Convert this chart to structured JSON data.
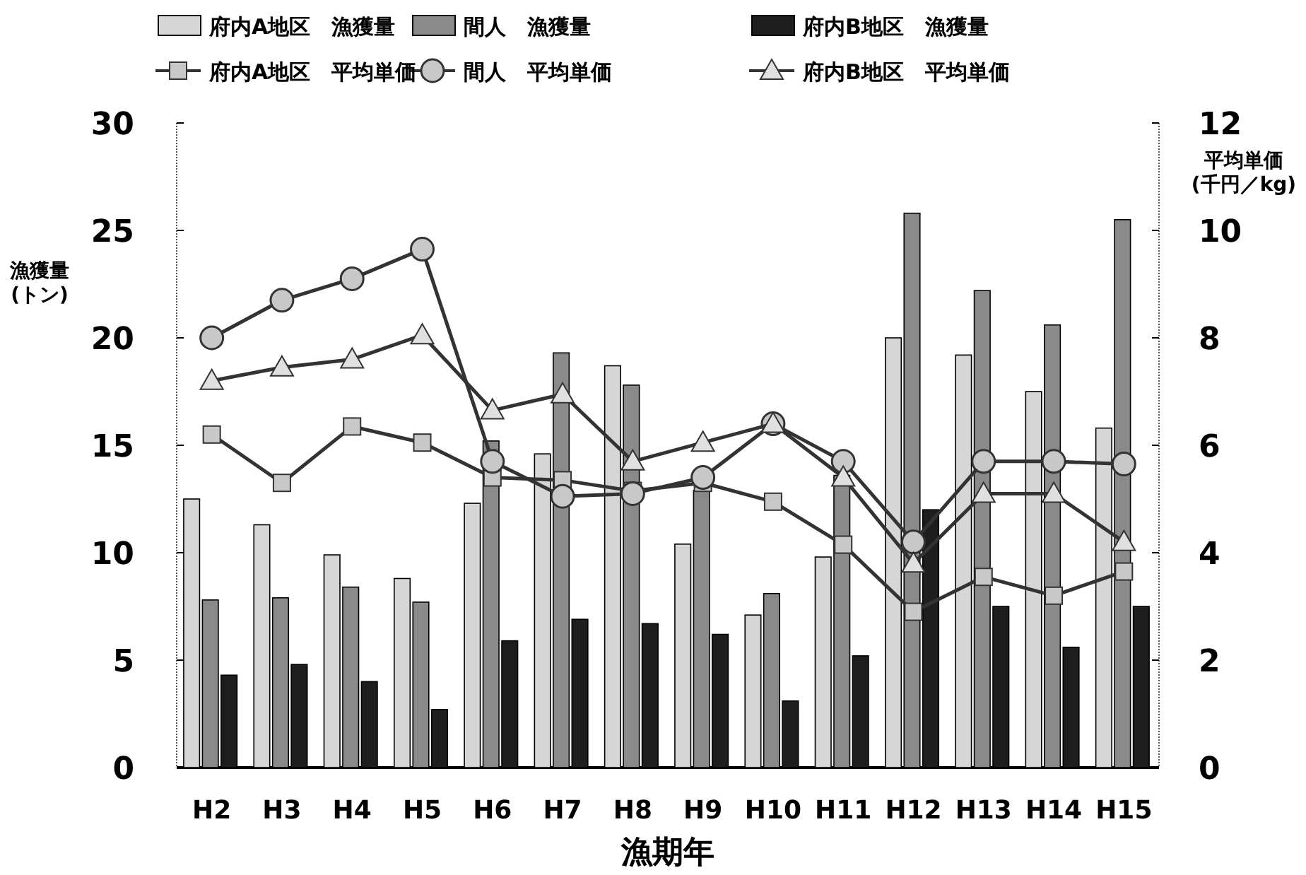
{
  "chart_data": {
    "type": "bar",
    "xlabel": "漁期年",
    "ylabel": "漁獲量\n(トン)",
    "y2label": "平均単価\n(千円／kg)",
    "categories": [
      "H2",
      "H3",
      "H4",
      "H5",
      "H6",
      "H7",
      "H8",
      "H9",
      "H10",
      "H11",
      "H12",
      "H13",
      "H14",
      "H15"
    ],
    "series": [
      {
        "name": "府内A地区　漁獲量",
        "color": "#d6d6d6",
        "values": [
          12.5,
          11.3,
          9.9,
          8.8,
          12.3,
          14.6,
          18.7,
          10.4,
          7.1,
          9.8,
          20.0,
          19.2,
          17.5,
          15.8
        ]
      },
      {
        "name": "間人　漁獲量",
        "color": "#8a8a8a",
        "values": [
          7.8,
          7.9,
          8.4,
          7.7,
          15.2,
          19.3,
          17.8,
          12.9,
          8.1,
          13.6,
          25.8,
          22.2,
          20.6,
          25.5
        ]
      },
      {
        "name": "府内B地区　漁獲量",
        "color": "#1e1e1e",
        "values": [
          4.3,
          4.8,
          4.0,
          2.7,
          5.9,
          6.9,
          6.7,
          6.2,
          3.1,
          5.2,
          12.0,
          7.5,
          5.6,
          7.5
        ]
      },
      {
        "name": "府内A地区　平均単価",
        "type": "line",
        "axis": "y2",
        "marker": "square",
        "color": "#333333",
        "values": [
          6.2,
          5.3,
          6.35,
          6.05,
          5.4,
          5.35,
          5.15,
          5.3,
          4.95,
          4.15,
          2.9,
          3.55,
          3.2,
          3.65
        ]
      },
      {
        "name": "間人　平均単価",
        "type": "line",
        "axis": "y2",
        "marker": "circle",
        "color": "#333333",
        "values": [
          8.0,
          8.7,
          9.1,
          9.65,
          5.7,
          5.05,
          5.1,
          5.4,
          6.4,
          5.7,
          4.2,
          5.7,
          5.7,
          5.65
        ]
      },
      {
        "name": "府内B地区　平均単価",
        "type": "line",
        "axis": "y2",
        "marker": "triangle",
        "color": "#333333",
        "values": [
          7.2,
          7.45,
          7.6,
          8.05,
          6.65,
          6.95,
          5.7,
          6.05,
          6.4,
          5.4,
          3.8,
          5.1,
          5.1,
          4.2
        ]
      }
    ],
    "ylim": [
      0,
      30
    ],
    "yticks": [
      0,
      5,
      10,
      15,
      20,
      25,
      30
    ],
    "y2lim": [
      0,
      12
    ],
    "y2ticks": [
      0,
      2,
      4,
      6,
      8,
      10,
      12
    ],
    "grid": false,
    "legend": "top"
  }
}
